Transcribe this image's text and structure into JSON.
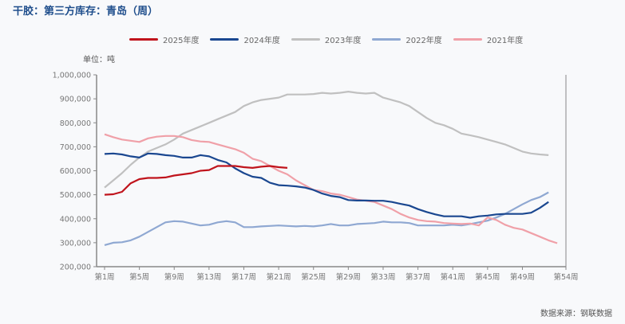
{
  "title": "干胶：第三方库存：青岛（周）",
  "unit": "单位：吨",
  "source": "数据来源：钢联数据",
  "chart_data": {
    "type": "line",
    "title": "干胶：第三方库存：青岛（周）",
    "ylabel": "单位：吨",
    "ylim": [
      200000,
      1000000
    ],
    "yticks": [
      200000,
      300000,
      400000,
      500000,
      600000,
      700000,
      800000,
      900000,
      1000000
    ],
    "ytick_labels": [
      "200,000",
      "300,000",
      "400,000",
      "500,000",
      "600,000",
      "700,000",
      "800,000",
      "900,000",
      "1,000,000"
    ],
    "xlim": [
      1,
      54
    ],
    "xticks": [
      1,
      5,
      9,
      13,
      17,
      21,
      25,
      29,
      33,
      37,
      41,
      45,
      49,
      54
    ],
    "xtick_labels": [
      "第1周",
      "第5周",
      "第9周",
      "第13周",
      "第17周",
      "第21周",
      "第25周",
      "第29周",
      "第33周",
      "第37周",
      "第41周",
      "第45周",
      "第49周",
      "第54周"
    ],
    "legend_position": "top",
    "series": [
      {
        "name": "2025年度",
        "color": "#c0141c",
        "values": [
          500000,
          502000,
          512000,
          548000,
          565000,
          570000,
          570000,
          572000,
          580000,
          585000,
          590000,
          600000,
          603000,
          620000,
          620000,
          620000,
          615000,
          612000,
          617000,
          620000,
          615000,
          612000
        ]
      },
      {
        "name": "2024年度",
        "color": "#1a4790",
        "values": [
          670000,
          672000,
          668000,
          660000,
          655000,
          672000,
          670000,
          665000,
          662000,
          655000,
          655000,
          665000,
          660000,
          645000,
          635000,
          610000,
          590000,
          575000,
          570000,
          550000,
          540000,
          538000,
          535000,
          530000,
          520000,
          505000,
          495000,
          490000,
          478000,
          476000,
          476000,
          475000,
          475000,
          470000,
          462000,
          455000,
          440000,
          428000,
          418000,
          410000,
          410000,
          410000,
          404000,
          410000,
          413000,
          418000,
          420000,
          420000,
          420000,
          425000,
          445000,
          470000
        ]
      },
      {
        "name": "2023年度",
        "color": "#c0c0c0",
        "values": [
          530000,
          560000,
          590000,
          625000,
          655000,
          680000,
          695000,
          710000,
          730000,
          755000,
          770000,
          785000,
          800000,
          815000,
          830000,
          845000,
          870000,
          885000,
          895000,
          900000,
          905000,
          918000,
          918000,
          918000,
          920000,
          925000,
          922000,
          925000,
          930000,
          925000,
          922000,
          925000,
          905000,
          895000,
          885000,
          870000,
          845000,
          820000,
          800000,
          790000,
          775000,
          755000,
          748000,
          740000,
          730000,
          720000,
          710000,
          695000,
          680000,
          672000,
          668000,
          665000
        ]
      },
      {
        "name": "2022年度",
        "color": "#8fa8d2",
        "values": [
          290000,
          300000,
          302000,
          310000,
          325000,
          345000,
          365000,
          385000,
          390000,
          388000,
          380000,
          372000,
          375000,
          385000,
          390000,
          385000,
          365000,
          365000,
          368000,
          370000,
          372000,
          370000,
          368000,
          370000,
          368000,
          372000,
          378000,
          372000,
          372000,
          378000,
          380000,
          382000,
          388000,
          385000,
          385000,
          382000,
          372000,
          372000,
          372000,
          372000,
          375000,
          372000,
          378000,
          385000,
          392000,
          405000,
          420000,
          440000,
          460000,
          478000,
          490000,
          510000
        ]
      },
      {
        "name": "2021年度",
        "color": "#f0a0a8",
        "values": [
          752000,
          740000,
          730000,
          725000,
          720000,
          735000,
          742000,
          745000,
          745000,
          740000,
          728000,
          722000,
          720000,
          710000,
          700000,
          690000,
          675000,
          650000,
          640000,
          620000,
          600000,
          585000,
          560000,
          540000,
          520000,
          515000,
          505000,
          500000,
          490000,
          480000,
          475000,
          470000,
          455000,
          440000,
          420000,
          405000,
          395000,
          390000,
          388000,
          382000,
          380000,
          378000,
          380000,
          372000,
          405000,
          395000,
          375000,
          362000,
          355000,
          340000,
          325000,
          310000,
          298000
        ]
      }
    ]
  }
}
